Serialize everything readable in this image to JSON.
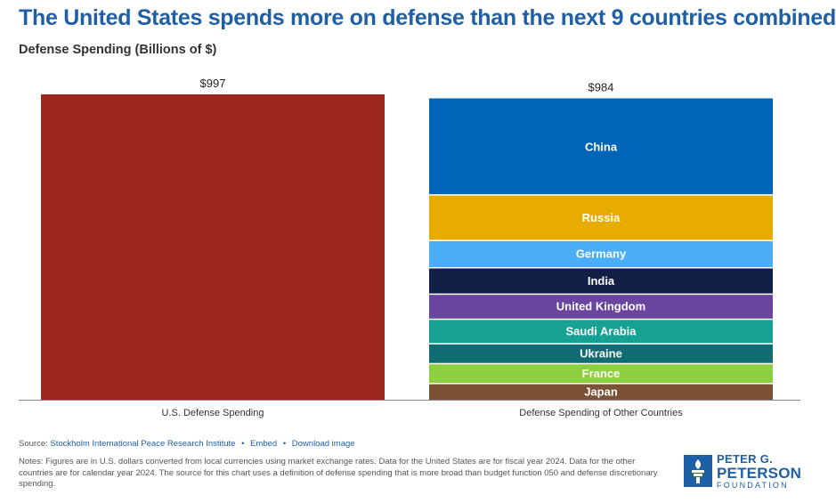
{
  "header": {
    "title": "The United States spends more on defense than the next 9 countries combined",
    "subtitle": "Defense Spending (Billions of $)"
  },
  "chart_data": {
    "type": "bar",
    "title": "The United States spends more on defense than the next 9 countries combined",
    "ylabel": "Defense Spending (Billions of $)",
    "ylim": [
      0,
      997
    ],
    "grid": false,
    "categories": [
      "U.S. Defense Spending",
      "Defense Spending of Other Countries"
    ],
    "totals": [
      997,
      984
    ],
    "total_labels": [
      "$997",
      "$984"
    ],
    "bars": [
      {
        "category": "U.S. Defense Spending",
        "segments": [
          {
            "name": "",
            "value": 997,
            "color": "#9e2820"
          }
        ]
      },
      {
        "category": "Defense Spending of Other Countries",
        "segments": [
          {
            "name": "Japan",
            "value": 55,
            "color": "#7b5237"
          },
          {
            "name": "France",
            "value": 65,
            "color": "#8ccf3f"
          },
          {
            "name": "Ukraine",
            "value": 65,
            "color": "#0f6c73"
          },
          {
            "name": "Saudi Arabia",
            "value": 80,
            "color": "#16a192"
          },
          {
            "name": "United Kingdom",
            "value": 82,
            "color": "#6a45a0"
          },
          {
            "name": "India",
            "value": 86,
            "color": "#0f1f45"
          },
          {
            "name": "Germany",
            "value": 89,
            "color": "#4aaef5"
          },
          {
            "name": "Russia",
            "value": 149,
            "color": "#e8ab00"
          },
          {
            "name": "China",
            "value": 313,
            "color": "#0065b8"
          }
        ]
      }
    ]
  },
  "footer": {
    "source_prefix": "Source:",
    "source_link": "Stockholm International Peace Research Institute",
    "embed_link": "Embed",
    "download_link": "Download image",
    "notes": "Notes: Figures are in U.S. dollars converted from local currencies using market exchange rates. Data for the United States are for fiscal year 2024. Data for the other countries are for calendar year 2024. The source for this chart uses a definition of defense spending that is more broad than budget function 050 and defense discretionary spending."
  },
  "logo": {
    "line1": "PETER G.",
    "line2": "PETERSON",
    "line3": "FOUNDATION",
    "color": "#1f5fa5"
  }
}
